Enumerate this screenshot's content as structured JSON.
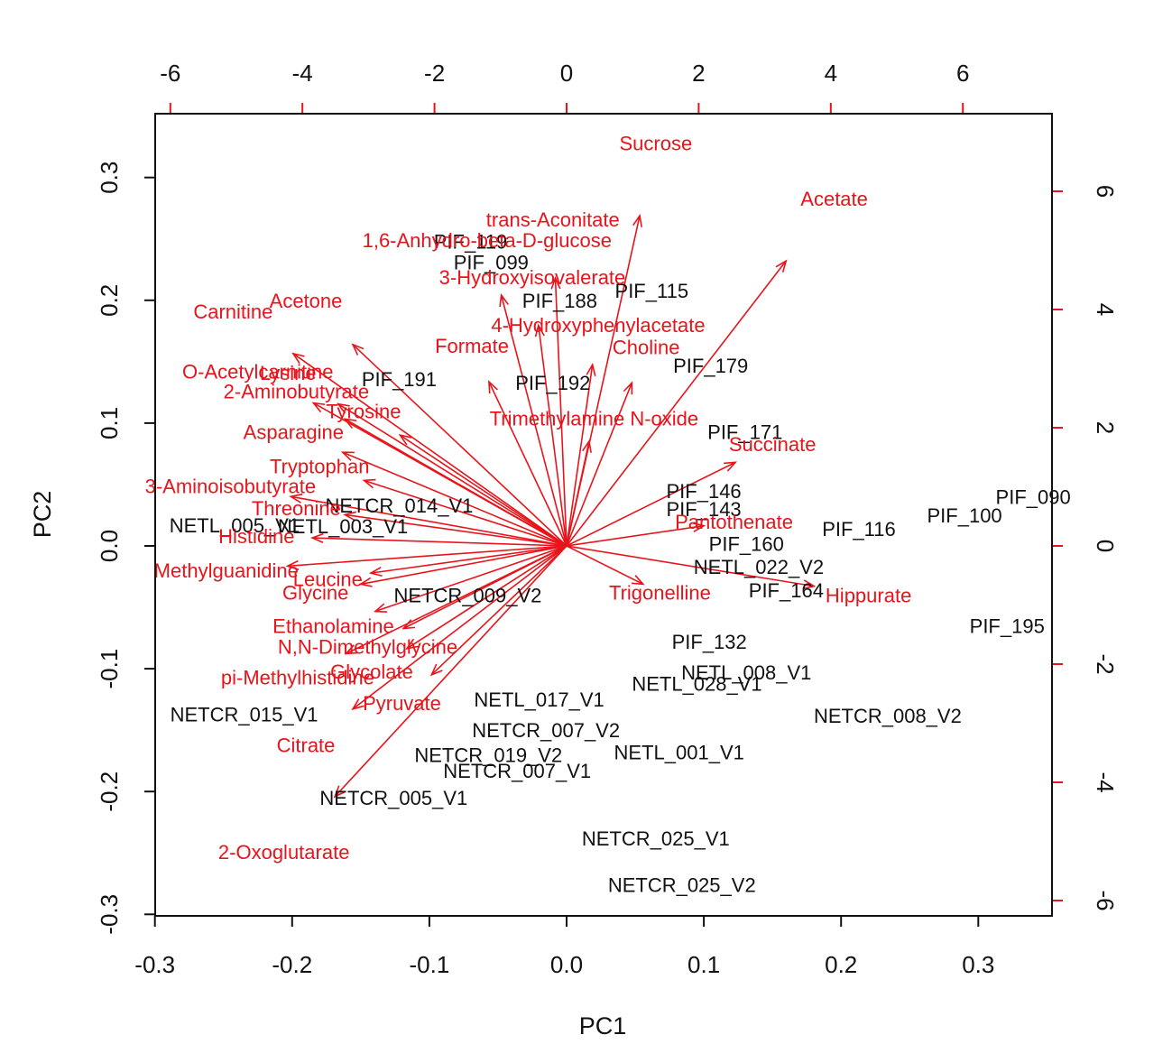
{
  "chart_data": {
    "type": "biplot",
    "title": "",
    "xlabel": "PC1",
    "ylabel": "PC2",
    "xlim": [
      -0.3,
      0.35
    ],
    "ylim": [
      -0.3,
      0.35
    ],
    "x_ticks": [
      "-0.3",
      "-0.2",
      "-0.1",
      "0.0",
      "0.1",
      "0.2",
      "0.3"
    ],
    "y_ticks": [
      "-0.3",
      "-0.2",
      "-0.1",
      "0.0",
      "0.1",
      "0.2",
      "0.3"
    ],
    "top_axis": {
      "range": [
        -6.5,
        7.5
      ],
      "ticks": [
        "-6",
        "-4",
        "-2",
        "0",
        "2",
        "4",
        "6"
      ]
    },
    "right_axis": {
      "range": [
        -6.5,
        7.5
      ],
      "ticks": [
        "-6",
        "-4",
        "-2",
        "0",
        "2",
        "4",
        "6"
      ]
    },
    "colors": {
      "observations": "#111111",
      "loadings": "#e8141b",
      "axes": "#111111"
    },
    "observations": [
      {
        "label": "PIF_119",
        "x": -0.07,
        "y": 0.248
      },
      {
        "label": "PIF_099",
        "x": -0.055,
        "y": 0.231
      },
      {
        "label": "PIF_115",
        "x": 0.062,
        "y": 0.208
      },
      {
        "label": "PIF_188",
        "x": -0.005,
        "y": 0.2
      },
      {
        "label": "PIF_179",
        "x": 0.105,
        "y": 0.147
      },
      {
        "label": "PIF_191",
        "x": -0.122,
        "y": 0.136
      },
      {
        "label": "PIF_192",
        "x": -0.01,
        "y": 0.133
      },
      {
        "label": "PIF_171",
        "x": 0.13,
        "y": 0.093
      },
      {
        "label": "PIF_146",
        "x": 0.1,
        "y": 0.045
      },
      {
        "label": "PIF_143",
        "x": 0.1,
        "y": 0.03
      },
      {
        "label": "PIF_160",
        "x": 0.131,
        "y": 0.002
      },
      {
        "label": "PIF_116",
        "x": 0.213,
        "y": 0.014
      },
      {
        "label": "PIF_090",
        "x": 0.34,
        "y": 0.04
      },
      {
        "label": "PIF_100",
        "x": 0.29,
        "y": 0.025
      },
      {
        "label": "PIF_164",
        "x": 0.16,
        "y": -0.036
      },
      {
        "label": "PIF_195",
        "x": 0.321,
        "y": -0.065
      },
      {
        "label": "PIF_132",
        "x": 0.104,
        "y": -0.078
      },
      {
        "label": "NETL_005_V1",
        "x": -0.242,
        "y": 0.017
      },
      {
        "label": "NETL_003_V1",
        "x": -0.163,
        "y": 0.016
      },
      {
        "label": "NETL_022_V2",
        "x": 0.14,
        "y": -0.017
      },
      {
        "label": "NETL_008_V1",
        "x": 0.131,
        "y": -0.103
      },
      {
        "label": "NETL_028_V1",
        "x": 0.095,
        "y": -0.112
      },
      {
        "label": "NETL_017_V1",
        "x": -0.02,
        "y": -0.125
      },
      {
        "label": "NETL_001_V1",
        "x": 0.082,
        "y": -0.168
      },
      {
        "label": "NETCR_008_V2",
        "x": 0.234,
        "y": -0.138
      },
      {
        "label": "NETCR_009_V2",
        "x": -0.072,
        "y": -0.04
      },
      {
        "label": "NETCR_014_V1",
        "x": -0.122,
        "y": 0.033
      },
      {
        "label": "NETCR_007_V2",
        "x": -0.015,
        "y": -0.15
      },
      {
        "label": "NETCR_019_V2",
        "x": -0.057,
        "y": -0.17
      },
      {
        "label": "NETCR_007_V1",
        "x": -0.036,
        "y": -0.183
      },
      {
        "label": "NETCR_005_V1",
        "x": -0.126,
        "y": -0.205
      },
      {
        "label": "NETCR_015_V1",
        "x": -0.235,
        "y": -0.137
      },
      {
        "label": "NETCR_025_V1",
        "x": 0.065,
        "y": -0.238
      },
      {
        "label": "NETCR_025_V2",
        "x": 0.084,
        "y": -0.276
      }
    ],
    "loadings": [
      {
        "label": "Sucrose",
        "x": 0.065,
        "y": 0.328
      },
      {
        "label": "Acetate",
        "x": 0.195,
        "y": 0.283
      },
      {
        "label": "trans-Aconitate",
        "x": -0.01,
        "y": 0.266
      },
      {
        "label": "1,6-Anhydro-beta-D-glucose",
        "x": -0.058,
        "y": 0.249
      },
      {
        "label": "3-Hydroxyisovalerate",
        "x": -0.025,
        "y": 0.219
      },
      {
        "label": "4-Hydroxyphenylacetate",
        "x": 0.023,
        "y": 0.18
      },
      {
        "label": "Formate",
        "x": -0.069,
        "y": 0.163
      },
      {
        "label": "Acetone",
        "x": -0.19,
        "y": 0.2
      },
      {
        "label": "Carnitine",
        "x": -0.243,
        "y": 0.191
      },
      {
        "label": "O-Acetylcarnitine",
        "x": -0.225,
        "y": 0.142
      },
      {
        "label": "2-Aminobutyrate",
        "x": -0.197,
        "y": 0.126
      },
      {
        "label": "Asparagine",
        "x": -0.199,
        "y": 0.093
      },
      {
        "label": "3-Aminoisobutyrate",
        "x": -0.245,
        "y": 0.049
      },
      {
        "label": "Tryptophan",
        "x": -0.18,
        "y": 0.065
      },
      {
        "label": "Threonine",
        "x": -0.197,
        "y": 0.031
      },
      {
        "label": "Methylguanidine",
        "x": -0.248,
        "y": -0.02
      },
      {
        "label": "Glycine",
        "x": -0.183,
        "y": -0.038
      },
      {
        "label": "Ethanolamine",
        "x": -0.17,
        "y": -0.065
      },
      {
        "label": "N,N-Dimethylglycine",
        "x": -0.145,
        "y": -0.082
      },
      {
        "label": "pi-Methylhistidine",
        "x": -0.196,
        "y": -0.107
      },
      {
        "label": "Pyruvate",
        "x": -0.12,
        "y": -0.128
      },
      {
        "label": "Citrate",
        "x": -0.19,
        "y": -0.162
      },
      {
        "label": "2-Oxoglutarate",
        "x": -0.206,
        "y": -0.249
      },
      {
        "label": "Succinate",
        "x": 0.15,
        "y": 0.083
      },
      {
        "label": "Pantothenate",
        "x": 0.122,
        "y": 0.02
      },
      {
        "label": "Hippurate",
        "x": 0.22,
        "y": -0.04
      }
    ],
    "overlap_labels": [
      {
        "label": "Lysine",
        "x": -0.203,
        "y": 0.141
      },
      {
        "label": "Choline",
        "x": 0.058,
        "y": 0.162
      },
      {
        "label": "Tyrosine",
        "x": -0.148,
        "y": 0.11
      },
      {
        "label": "Trimethylamine N-oxide",
        "x": 0.02,
        "y": 0.104
      },
      {
        "label": "Histidine",
        "x": -0.226,
        "y": 0.008
      },
      {
        "label": "Leucine",
        "x": -0.174,
        "y": -0.027
      },
      {
        "label": "Trigonelline",
        "x": 0.068,
        "y": -0.038
      },
      {
        "label": "Glycolate",
        "x": -0.142,
        "y": -0.102
      }
    ]
  }
}
